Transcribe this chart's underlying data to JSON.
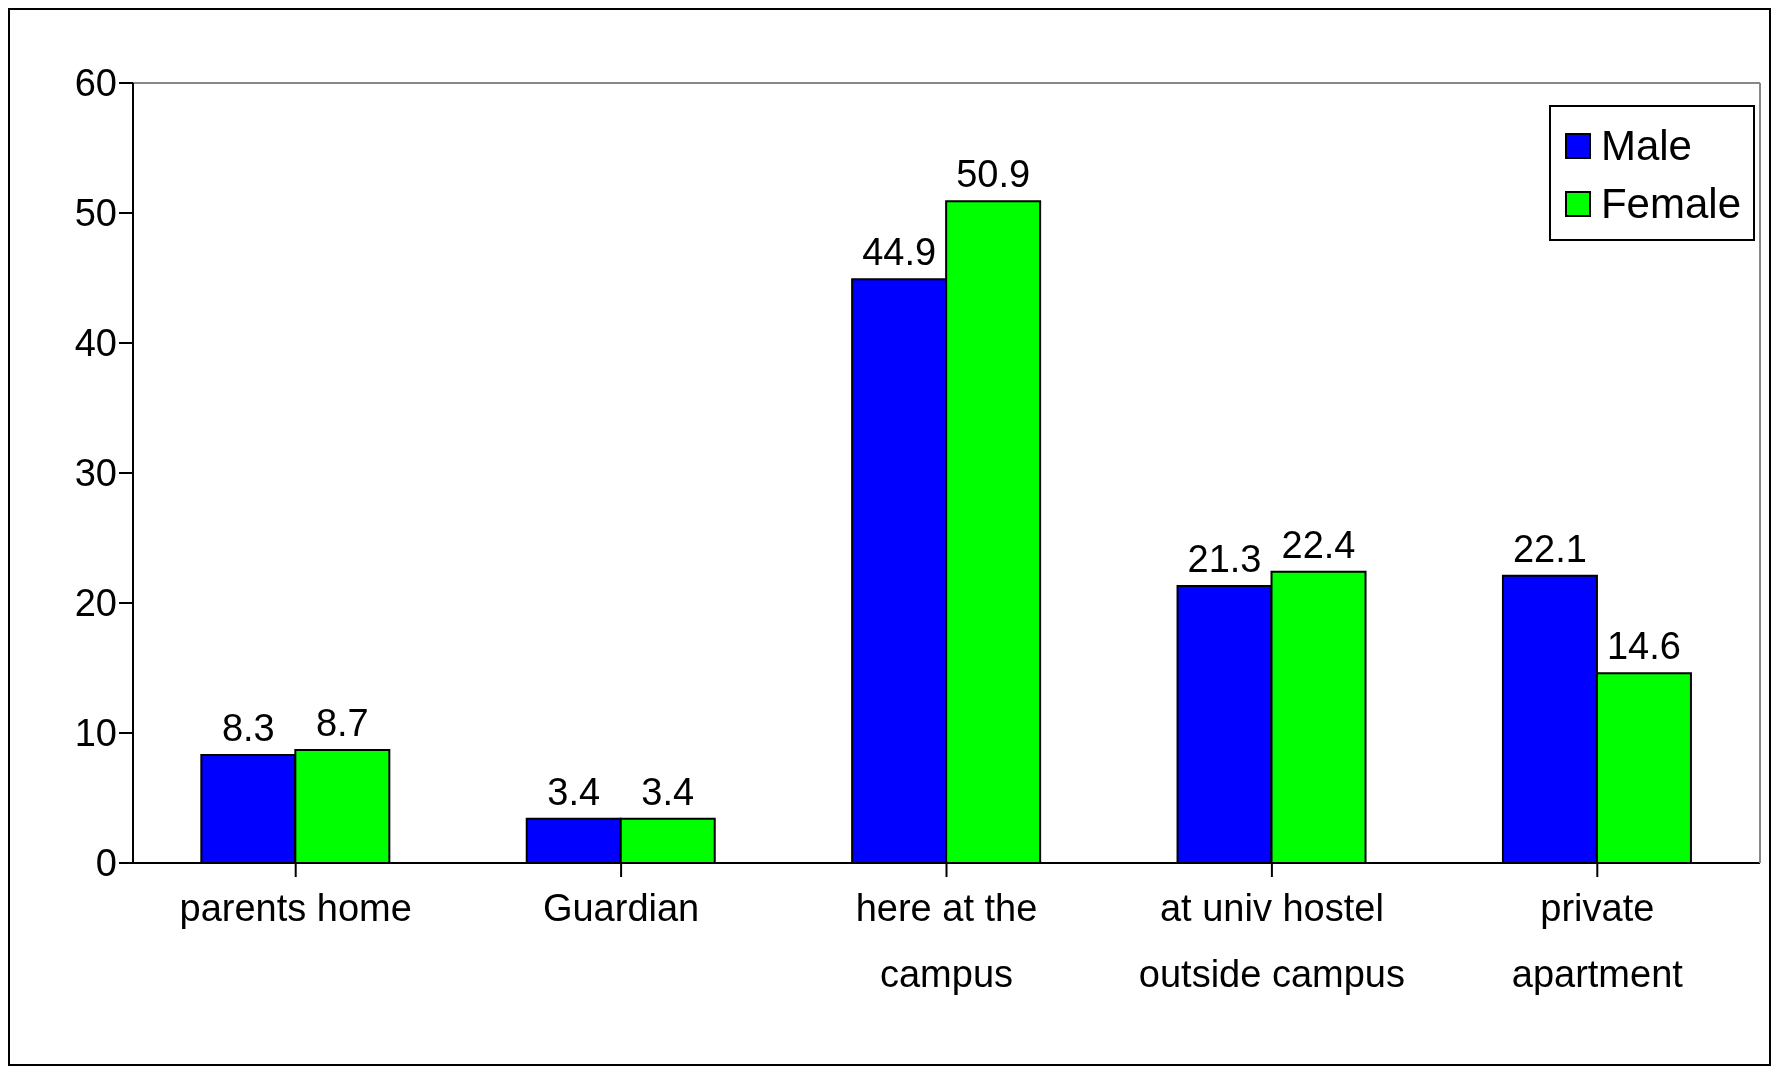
{
  "chart_data": {
    "type": "bar",
    "categories": [
      "parents home",
      "Guardian",
      "here at the campus",
      "at univ hostel outside campus",
      "private apartment"
    ],
    "series": [
      {
        "name": "Male",
        "color": "#0000ff",
        "values": [
          8.3,
          3.4,
          44.9,
          21.3,
          22.1
        ]
      },
      {
        "name": "Female",
        "color": "#00ff00",
        "values": [
          8.7,
          3.4,
          50.9,
          22.4,
          14.6
        ]
      }
    ],
    "ylim": [
      0,
      60
    ],
    "yticks": [
      0,
      10,
      20,
      30,
      40,
      50,
      60
    ],
    "grid": false,
    "legend": "top right",
    "data_labels": true
  }
}
